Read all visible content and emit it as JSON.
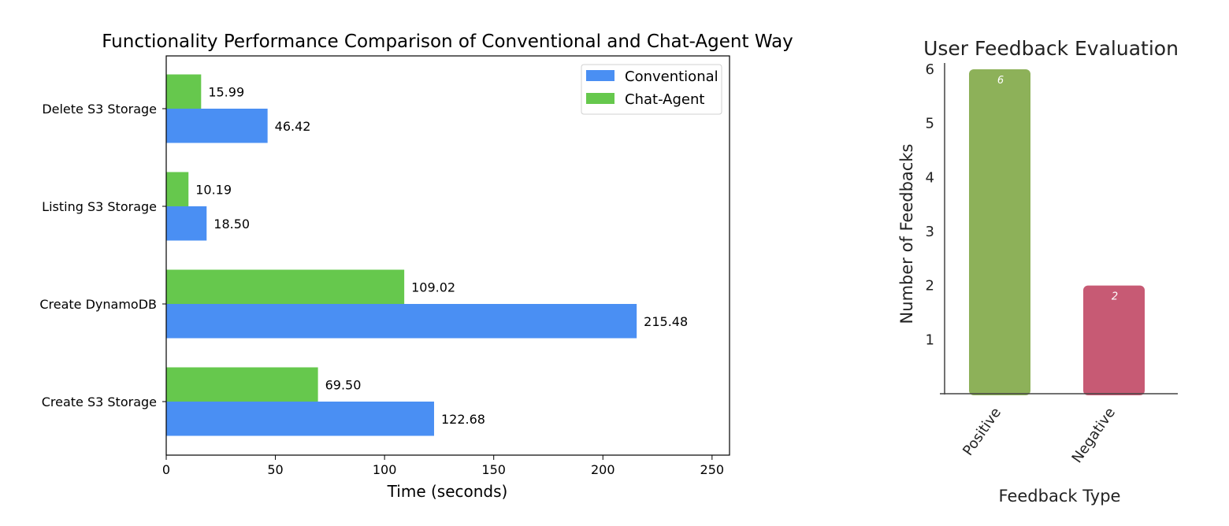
{
  "chart_data": [
    {
      "type": "bar",
      "orientation": "horizontal",
      "title": "Functionality Performance Comparison of Conventional and Chat-Agent Way",
      "xlabel": "Time (seconds)",
      "ylabel": "",
      "categories": [
        "Create S3 Storage",
        "Create DynamoDB",
        "Listing S3 Storage",
        "Delete S3 Storage"
      ],
      "series": [
        {
          "name": "Conventional",
          "color": "#4a8ff3",
          "values": [
            122.68,
            215.48,
            18.5,
            46.42
          ],
          "labels": [
            "122.68",
            "215.48",
            "18.50",
            "46.42"
          ]
        },
        {
          "name": "Chat-Agent",
          "color": "#66c84d",
          "values": [
            69.5,
            109.02,
            10.19,
            15.99
          ],
          "labels": [
            "69.50",
            "109.02",
            "10.19",
            "15.99"
          ]
        }
      ],
      "xlim": [
        0,
        258
      ],
      "xticks": [
        "0",
        "50",
        "100",
        "150",
        "200",
        "250"
      ],
      "legend": "top-right",
      "grid": false
    },
    {
      "type": "bar",
      "orientation": "vertical",
      "title": "User Feedback Evaluation",
      "xlabel": "Feedback Type",
      "ylabel": "Number of Feedbacks",
      "categories": [
        "Positive",
        "Negative"
      ],
      "values": [
        6,
        2
      ],
      "labels": [
        "6",
        "2"
      ],
      "colors": [
        "#8db159",
        "#c75a74"
      ],
      "ylim": [
        0,
        6
      ],
      "yticks": [
        "1",
        "2",
        "3",
        "4",
        "5",
        "6"
      ],
      "grid": false
    }
  ]
}
